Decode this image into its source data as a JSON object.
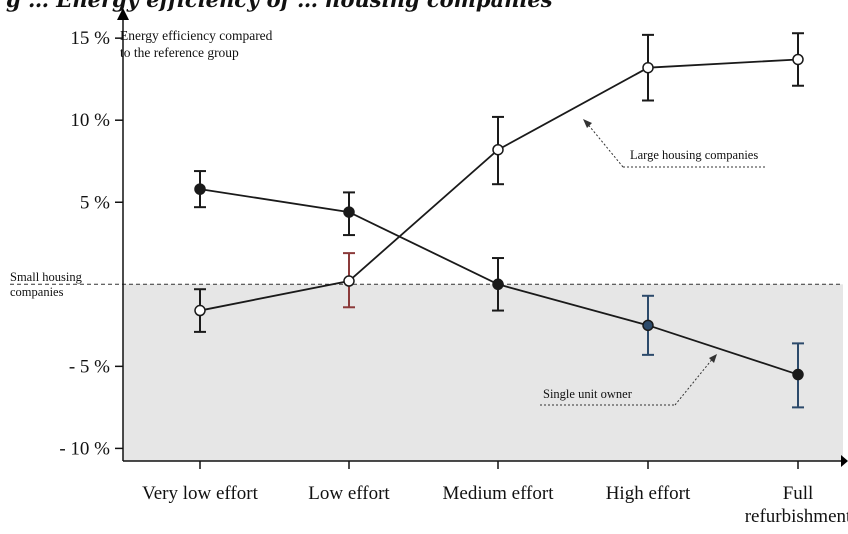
{
  "header": {
    "caption_text": "g … Energy efficiency of … housing companies"
  },
  "labels": {
    "axis_title": "Energy efficiency compared\nto the reference group",
    "small_housing": "Small housing\ncompanies",
    "large_housing": "Large housing companies",
    "single_unit": "Single unit owner"
  },
  "colors": {
    "shade": "#e6e6e6",
    "line": "#1a1a1a",
    "error_highlight_red": "#8b3a3a",
    "error_highlight_blue": "#2c4a6b",
    "point_blue": "#2c4a6b"
  },
  "chart_data": {
    "type": "line",
    "categories": [
      "Very low effort",
      "Low effort",
      "Medium effort",
      "High effort",
      "Full\nrefurbishment"
    ],
    "ylim": [
      -11,
      16
    ],
    "yticks": [
      15,
      10,
      5,
      -5,
      -10
    ],
    "ytick_labels": [
      "15 %",
      "10 %",
      "5 %",
      "- 5 %",
      "- 10 %"
    ],
    "reference_line": 0,
    "shade_below_reference": true,
    "series": [
      {
        "name": "Large housing companies",
        "marker": "open",
        "values": [
          -1.6,
          0.2,
          8.2,
          13.2,
          13.7
        ],
        "err_low": [
          -2.9,
          -1.4,
          6.1,
          11.2,
          12.1
        ],
        "err_high": [
          -0.3,
          1.9,
          10.2,
          15.2,
          15.3
        ]
      },
      {
        "name": "Single unit owner",
        "marker": "filled",
        "values": [
          5.8,
          4.4,
          0.0,
          -2.5,
          -5.5
        ],
        "err_low": [
          4.7,
          3.0,
          -1.6,
          -4.3,
          -7.5
        ],
        "err_high": [
          6.9,
          5.6,
          1.6,
          -0.7,
          -3.6
        ]
      }
    ]
  }
}
